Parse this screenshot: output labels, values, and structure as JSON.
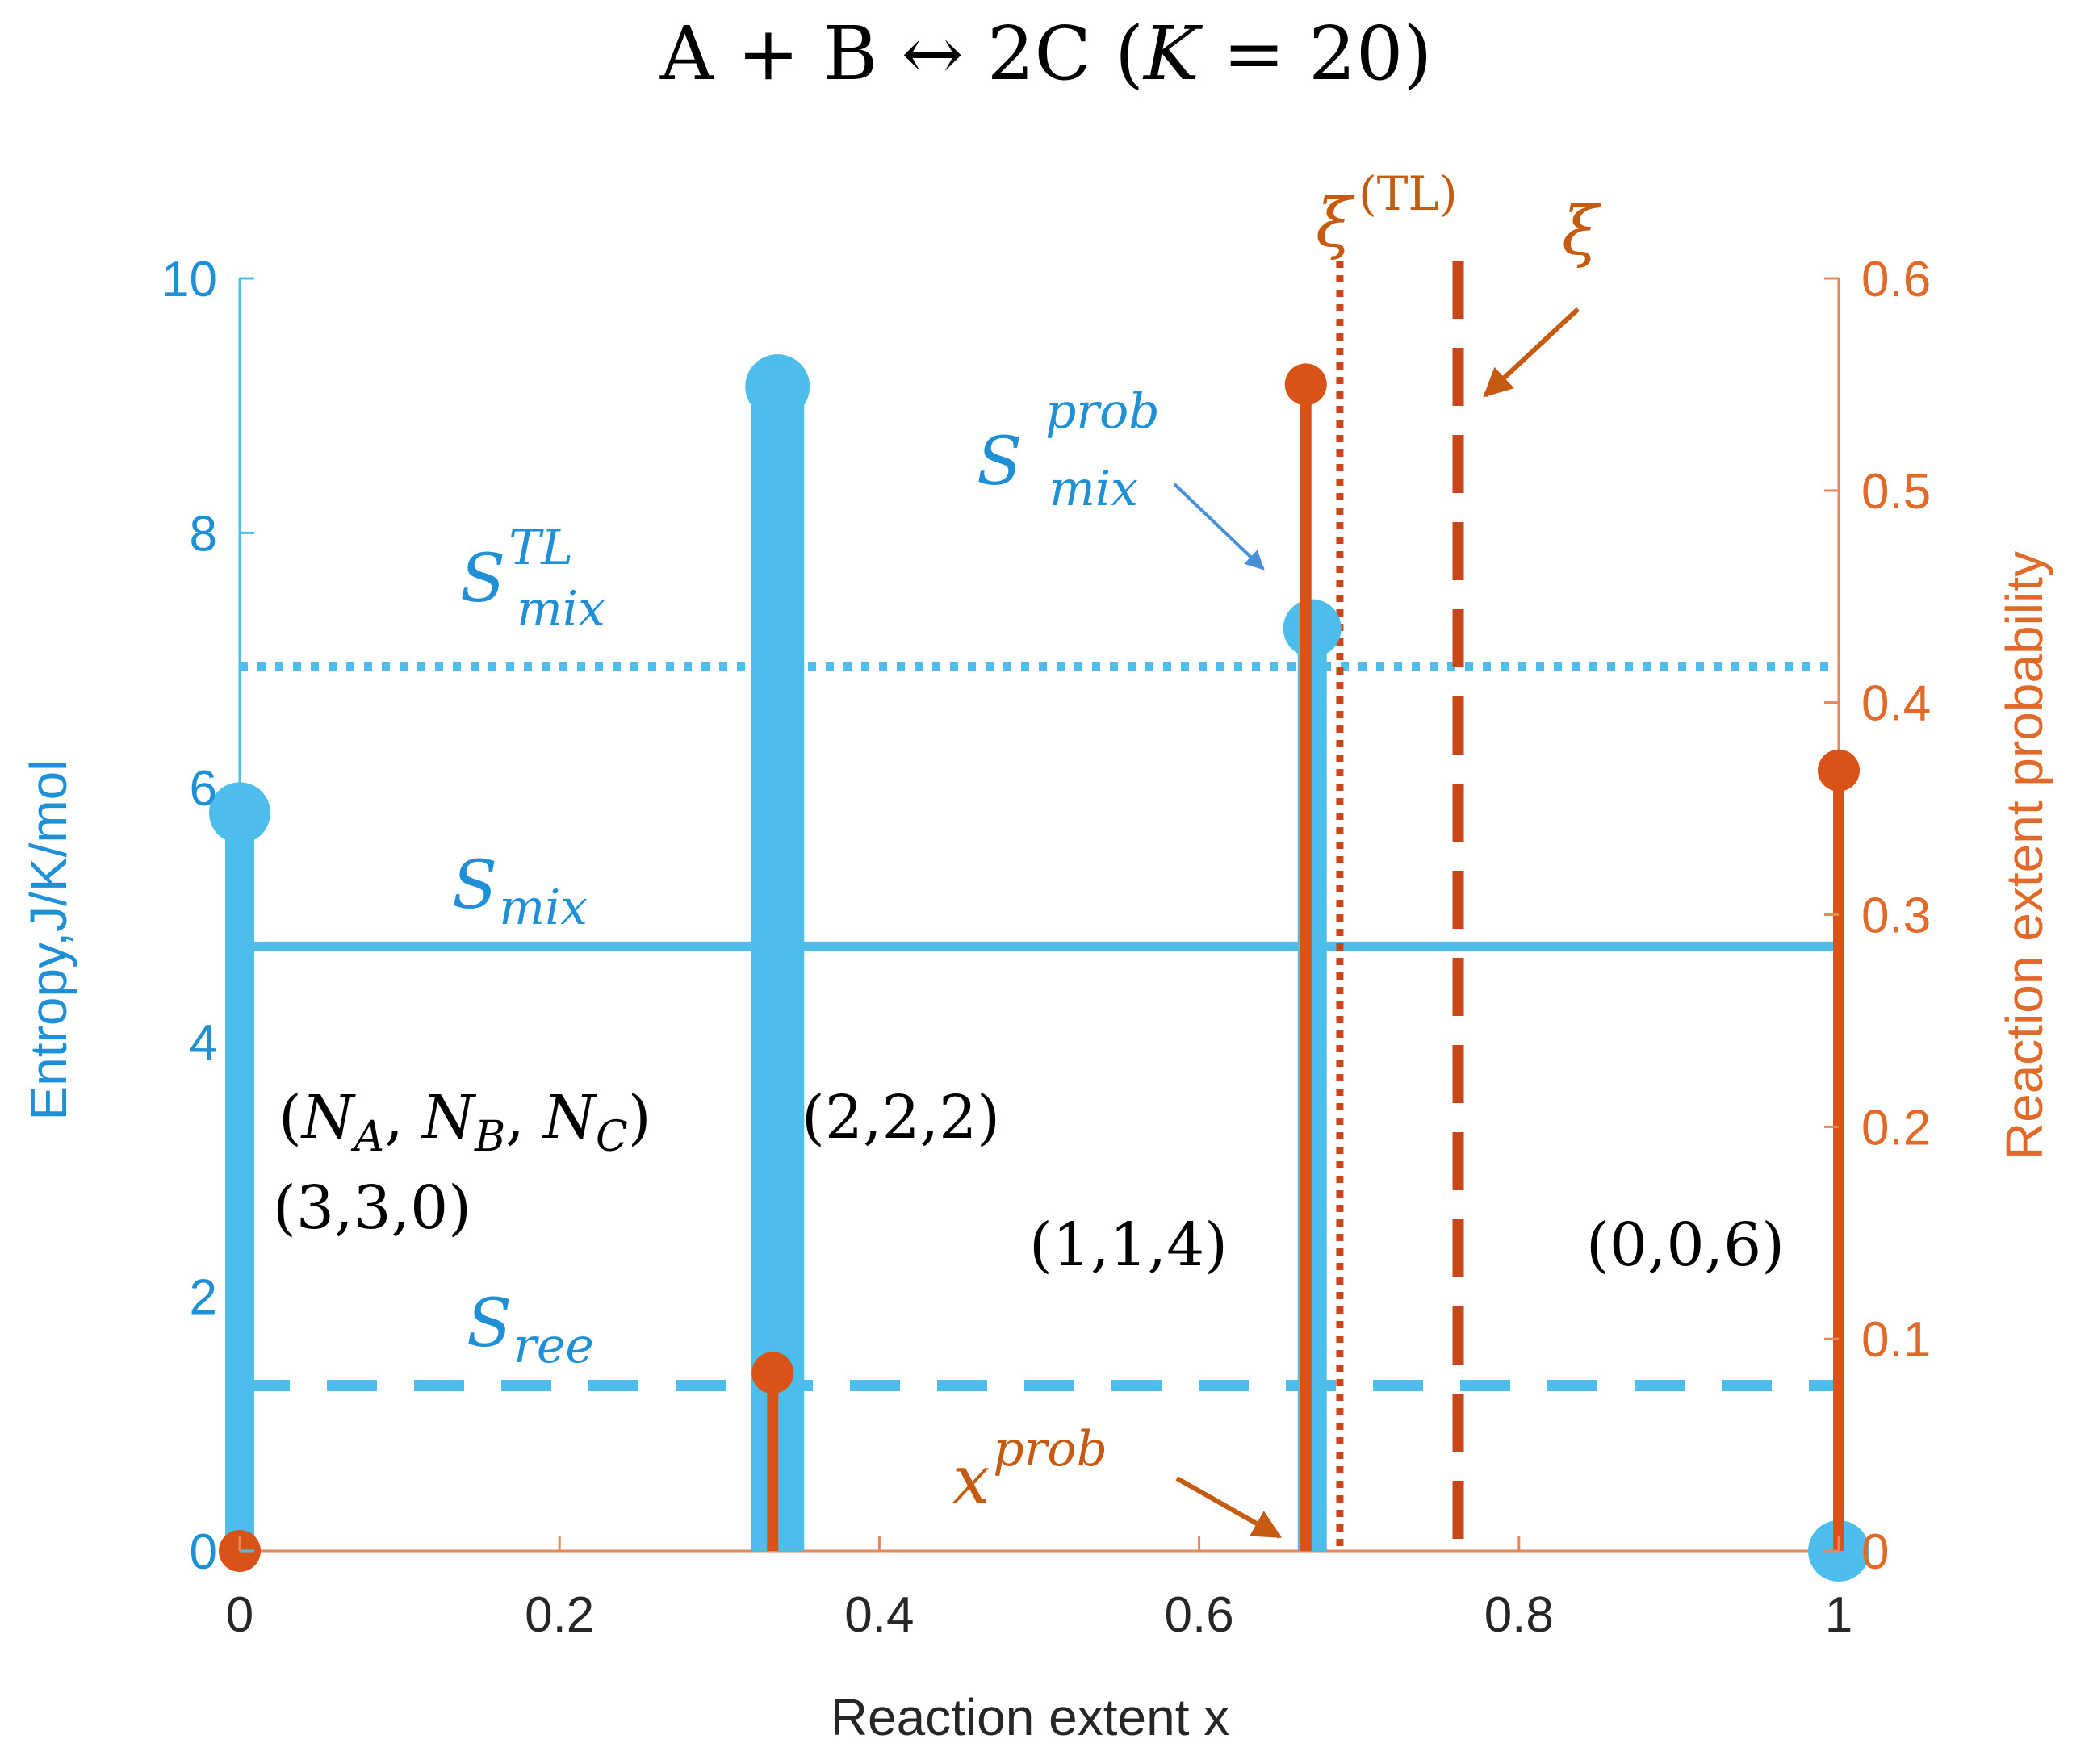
{
  "chart_data": {
    "type": "stem",
    "title": {
      "lead": "A + B ↔ 2C (",
      "k": "K",
      "tail": " = 20)"
    },
    "xlabel": "Reaction extent x",
    "ylabel_left": "Entropy,J/K/mol",
    "ylabel_right": "Reaction extent probability",
    "xlim": [
      0,
      1
    ],
    "ylim_left": [
      0,
      10
    ],
    "ylim_right": [
      0,
      0.6
    ],
    "x_ticks": [
      "0",
      "0.2",
      "0.4",
      "0.6",
      "0.8",
      "1"
    ],
    "y_left_ticks": [
      "0",
      "2",
      "4",
      "6",
      "8",
      "10"
    ],
    "y_right_ticks": [
      "0",
      "0.1",
      "0.2",
      "0.3",
      "0.4",
      "0.5",
      "0.6"
    ],
    "colors": {
      "entropy": "#4dbeeb",
      "entropy_text": "#1f7fc7",
      "probability": "#d95319",
      "annotation": "#c55a11"
    },
    "entropy_stems": {
      "x": [
        0,
        0.3333,
        0.6667,
        1
      ],
      "y": [
        5.8,
        9.15,
        7.25,
        0
      ]
    },
    "probability_stems": {
      "x": [
        0,
        0.3333,
        0.6667,
        1
      ],
      "y": [
        0,
        0.084,
        0.55,
        0.368
      ]
    },
    "reference_lines": {
      "S_mix_TL": 6.95,
      "S_mix": 4.75,
      "S_ree": 1.3,
      "xi_TL": 0.688,
      "xi": 0.762
    },
    "labels": {
      "S": "S",
      "mix": "mix",
      "TL": "TL",
      "prob": "prob",
      "ree": "ree",
      "x": "x",
      "xi": "ξ",
      "xi_TL_sup": "(TL)",
      "composition_header": {
        "open": "(",
        "N": "N",
        "A": "A",
        "B": "B",
        "C": "C",
        "comma": ", ",
        "close": ")"
      },
      "states": [
        "(3,3,0)",
        "(2,2,2)",
        "(1,1,4)",
        "(0,0,6)"
      ]
    }
  }
}
